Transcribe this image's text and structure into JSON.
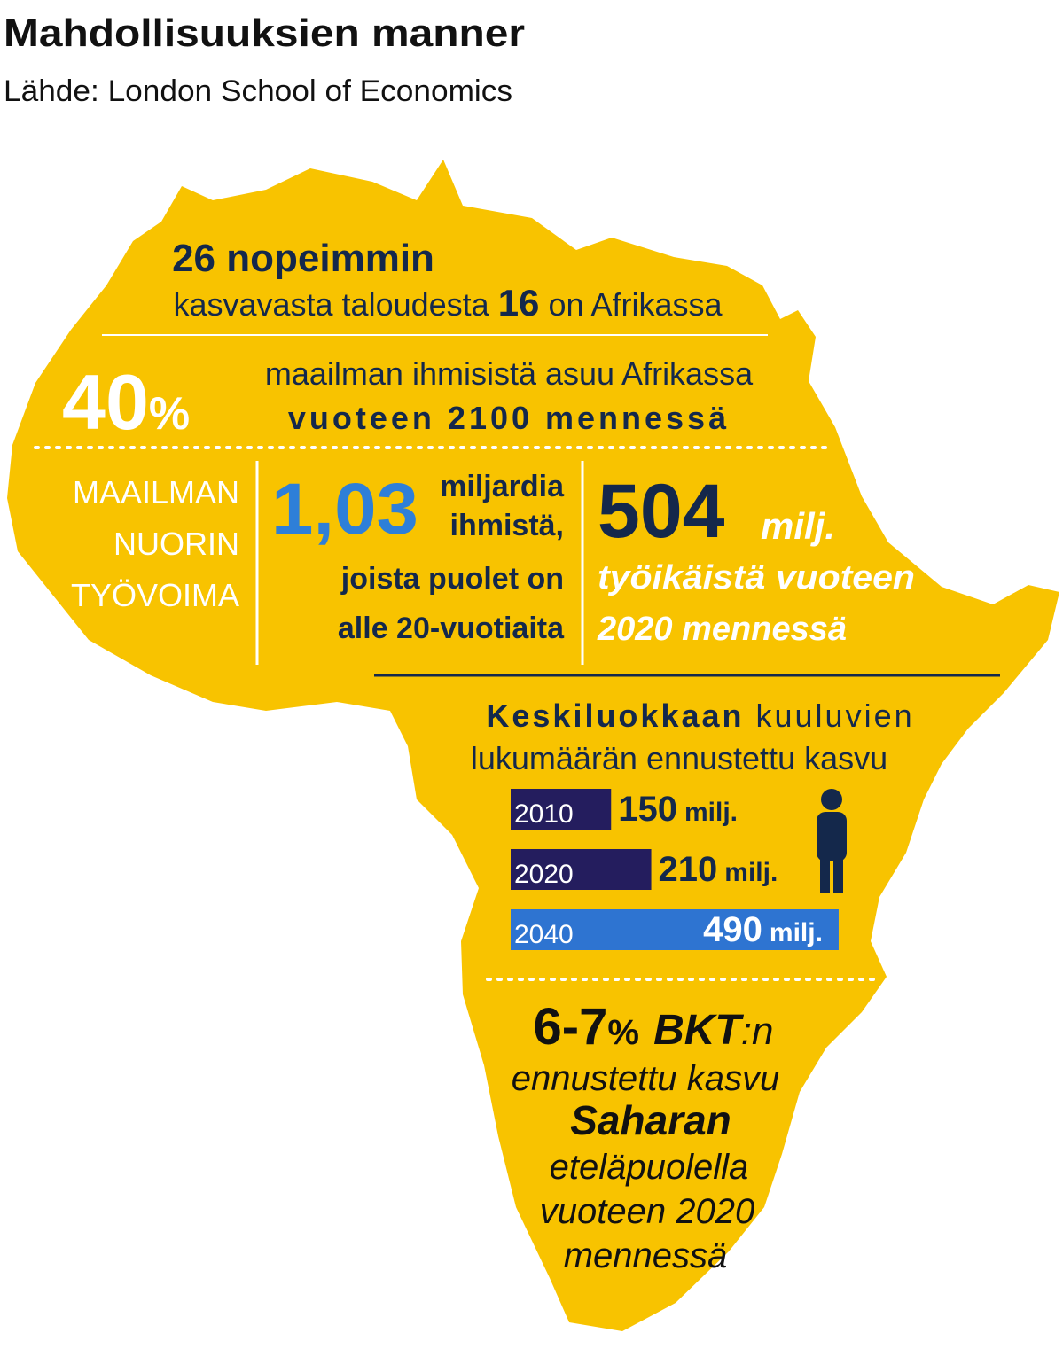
{
  "header": {
    "title": "Mahdollisuuksien manner",
    "source": "Lähde: London School of Economics"
  },
  "economies": {
    "headline": "26 nopeimmin",
    "line_start": "kasvavasta taloudesta",
    "count": "16",
    "line_end": "on Afrikassa"
  },
  "population": {
    "number": "40",
    "unit": "%",
    "line1": "maailman ihmisistä asuu Afrikassa",
    "line2": "vuoteen 2100 mennessä"
  },
  "youth": {
    "lines": [
      "MAAILMAN",
      "NUORIN",
      "TYÖVOIMA"
    ]
  },
  "young_people": {
    "number": "1,03",
    "lines": [
      "miljardia",
      "ihmistä,",
      "joista puolet on",
      "alle 20-vuotiaita"
    ]
  },
  "working_age": {
    "number": "504",
    "unit": "milj.",
    "lines": [
      "työikäistä vuoteen",
      "2020 mennessä"
    ]
  },
  "middle_class": {
    "title_bold": "Keskiluokkaan",
    "title_rest": "kuuluvien",
    "line2": "lukumäärän ennustettu kasvu",
    "bars": [
      {
        "year": "2010",
        "value": 150,
        "unit": "milj.",
        "color": "#241d5e"
      },
      {
        "year": "2020",
        "value": 210,
        "unit": "milj.",
        "color": "#241d5e"
      },
      {
        "year": "2040",
        "value": 490,
        "unit": "milj.",
        "color": "#2e74d1"
      }
    ]
  },
  "gdp": {
    "number": "6-7",
    "unit": "%",
    "abbr": "BKT",
    "suffix": ":n",
    "line1": "ennustettu kasvu",
    "region": "Saharan",
    "lines": [
      "eteläpuolella",
      "vuoteen 2020",
      "mennessä"
    ]
  }
}
